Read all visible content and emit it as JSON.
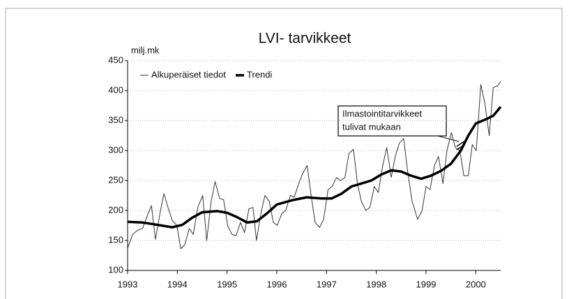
{
  "chart_data": {
    "type": "line",
    "title": "LVI- tarvikkeet",
    "y_label": "milj.mk",
    "annotation": [
      "Ilmastointitarvikkeet",
      "tulivat mukaan"
    ],
    "legend": "upper left",
    "grid": true,
    "xlim": [
      1993,
      2000.5
    ],
    "xticks": [
      1993,
      1994,
      1995,
      1996,
      1997,
      1998,
      1999,
      2000
    ],
    "ylim": [
      100,
      450
    ],
    "yticks": [
      100,
      150,
      200,
      250,
      300,
      350,
      400,
      450
    ],
    "series": [
      {
        "name": "Alkuperäiset tiedot",
        "color": "#333333",
        "width": 1,
        "x": [
          1993.0,
          1993.1,
          1993.2,
          1993.3,
          1993.39,
          1993.48,
          1993.56,
          1993.65,
          1993.73,
          1993.82,
          1993.9,
          1993.99,
          1994.07,
          1994.15,
          1994.24,
          1994.32,
          1994.41,
          1994.51,
          1994.59,
          1994.68,
          1994.76,
          1994.85,
          1994.93,
          1995.01,
          1995.1,
          1995.18,
          1995.27,
          1995.35,
          1995.44,
          1995.52,
          1995.59,
          1995.68,
          1995.76,
          1995.85,
          1995.93,
          1996.01,
          1996.1,
          1996.18,
          1996.27,
          1996.35,
          1996.44,
          1996.52,
          1996.61,
          1996.69,
          1996.77,
          1996.86,
          1996.94,
          1997.03,
          1997.11,
          1997.2,
          1997.28,
          1997.37,
          1997.45,
          1997.54,
          1997.62,
          1997.7,
          1997.79,
          1997.87,
          1997.96,
          1998.04,
          1998.13,
          1998.21,
          1998.3,
          1998.38,
          1998.46,
          1998.55,
          1998.63,
          1998.72,
          1998.83,
          1998.92,
          1999.0,
          1999.08,
          1999.17,
          1999.25,
          1999.34,
          1999.42,
          1999.51,
          1999.59,
          1999.68,
          1999.76,
          1999.85,
          1999.93,
          2000.01,
          2000.1,
          2000.18,
          2000.27,
          2000.35,
          2000.44,
          2000.5
        ],
        "values": [
          137,
          160,
          167,
          170,
          190,
          208,
          152,
          195,
          228,
          203,
          183,
          175,
          136,
          143,
          170,
          160,
          205,
          225,
          150,
          215,
          248,
          220,
          218,
          175,
          160,
          158,
          180,
          163,
          203,
          205,
          150,
          195,
          225,
          215,
          180,
          175,
          195,
          200,
          225,
          222,
          245,
          262,
          275,
          225,
          180,
          172,
          185,
          235,
          240,
          255,
          250,
          255,
          295,
          302,
          245,
          215,
          200,
          205,
          240,
          230,
          275,
          305,
          255,
          290,
          312,
          320,
          265,
          215,
          185,
          200,
          240,
          235,
          275,
          290,
          245,
          300,
          330,
          305,
          300,
          258,
          258,
          310,
          300,
          410,
          380,
          325,
          405,
          408,
          415
        ]
      },
      {
        "name": "Trendi",
        "color": "#000000",
        "width": 3.5,
        "x": [
          1993.0,
          1993.3,
          1993.6,
          1993.9,
          1994.1,
          1994.3,
          1994.5,
          1994.8,
          1995.0,
          1995.2,
          1995.4,
          1995.6,
          1995.8,
          1996.0,
          1996.3,
          1996.6,
          1996.9,
          1997.1,
          1997.3,
          1997.5,
          1997.7,
          1997.9,
          1998.1,
          1998.3,
          1998.5,
          1998.7,
          1998.9,
          1999.1,
          1999.3,
          1999.5,
          1999.7,
          1999.85,
          2000.0,
          2000.2,
          2000.35,
          2000.5
        ],
        "values": [
          181,
          180,
          176,
          172,
          176,
          188,
          197,
          199,
          196,
          189,
          180,
          182,
          195,
          210,
          217,
          222,
          220,
          220,
          228,
          240,
          245,
          250,
          260,
          267,
          265,
          258,
          253,
          258,
          266,
          278,
          300,
          325,
          345,
          352,
          358,
          373
        ]
      }
    ]
  }
}
